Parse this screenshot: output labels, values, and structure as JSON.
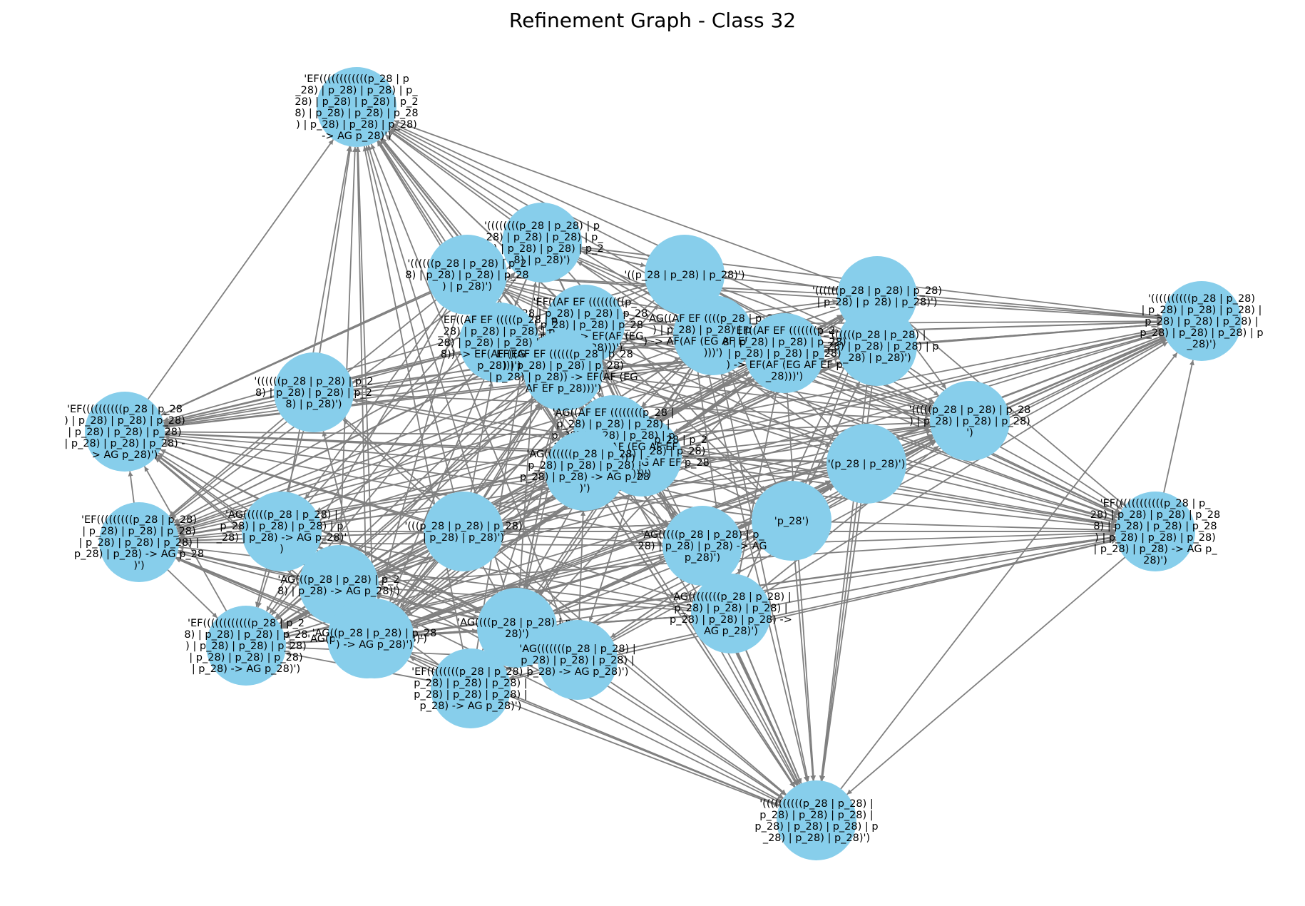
{
  "title": "Refinement Graph - Class 32",
  "colors": {
    "node_fill": "#87ceeb",
    "edge": "#808080",
    "label": "#000000",
    "background": "#ffffff"
  },
  "nodes": [
    {
      "id": "n_top",
      "lines": [
        "'EF((((((((((((p_28 | p",
        "_28) | p_28) | p_28) | p_",
        "28) | p_28) | p_28) | p_2",
        "8) | p_28) | p_28) | p_28",
        ") | p_28) | p_28) | p_28)",
        "-> AG p_28)')"
      ]
    },
    {
      "id": "n_tr",
      "lines": [
        "'((((((((((p_28 | p_28)",
        "| p_28) | p_28) | p_28) |",
        "p_28) | p_28) | p_28) |",
        "p_28) | p_28) | p_28) | p",
        "_28)')"
      ]
    },
    {
      "id": "n_bottom",
      "lines": [
        "'((((((((((p_28 | p_28) |",
        "p_28) | p_28) | p_28) |",
        "p_28) | p_28) | p_28) | p",
        "_28) | p_28) | p_28)')"
      ]
    },
    {
      "id": "n_right",
      "lines": [
        "'EF((((((((((((p_28 | p_",
        "28) | p_28) | p_28) | p_28",
        "8) | p_28) | p_28) | p_28",
        ") | p_28) | p_28) | p_28)",
        "| p_28) | p_28) -> AG p_",
        "28)')"
      ]
    },
    {
      "id": "n_left_top",
      "lines": [
        "'EF((((((((((p_28 | p_28",
        ") | p_28) | p_28) | p_28)",
        "| p_28) | p_28) | p_28)",
        "| p_28) | p_28) | p_28) -",
        "> AG p_28)')"
      ]
    },
    {
      "id": "n_left_mid",
      "lines": [
        "'EF(((((((((p_28 | p_28)",
        "| p_28) | p_28) | p_28)",
        "| p_28) | p_28) | p_28) |",
        "p_28) | p_28) -> AG p_28",
        ")')"
      ]
    },
    {
      "id": "n_left_bottom",
      "lines": [
        "'EF((((((((((((p_28 | p_2",
        "8) | p_28) | p_28) | p_28",
        ") | p_28) | p_28) | p_28)",
        "| p_28) | p_28) | p_28)",
        "| p_28) -> AG p_28)')"
      ]
    },
    {
      "id": "n_mid_right",
      "lines": [
        "'(((((p_28 | p_28) | p_28",
        ") | p_28) | p_28) | p_28)",
        "')"
      ]
    },
    {
      "id": "n_ul1",
      "lines": [
        "'((((((((p_28 | p_28) | p",
        "_28) | p_28) | p_28) | p_",
        "28) | p_28) | p_28) | p_2",
        "8) | p_28)')"
      ]
    },
    {
      "id": "n_ul2",
      "lines": [
        "'((((((p_28 | p_28) | p_2",
        "8) | p_28) | p_28) | p_28",
        ") | p_28)')"
      ]
    },
    {
      "id": "n_ul3",
      "lines": [
        "'((((((p_28 | p_28) | p_2",
        "8) | p_28) | p_28) | p_2",
        "8) | p_28)')"
      ]
    },
    {
      "id": "n_pp",
      "lines": [
        "'((p_28 | p_28) | p_28)')"
      ]
    },
    {
      "id": "n_p28pair",
      "lines": [
        "'(p_28 | p_28)')"
      ]
    },
    {
      "id": "n_p28",
      "lines": [
        "'p_28')"
      ]
    },
    {
      "id": "n_ur1",
      "lines": [
        "'((((((p_28 | p_28) | p_28)",
        "| p_28) | p_28) | p_28)')"
      ]
    },
    {
      "id": "n_ur2",
      "lines": [
        "'((((((p_28 | p_28) |",
        "p_28) | p_28) | p_28) | p",
        "_28) | p_28)')"
      ]
    },
    {
      "id": "n_ppp",
      "lines": [
        "'(((p_28 | p_28) | p_28)",
        "| p_28) | p_28)')"
      ]
    },
    {
      "id": "n_ag1",
      "lines": [
        "'AG((((((p_28 | p_28) |",
        "p_28) | p_28) | p_28) | p",
        "_28) | p_28) -> AG p_28)'",
        ")"
      ]
    },
    {
      "id": "n_ag2",
      "lines": [
        "'AG(((p_28 | p_28) | p_2",
        "8) | p_28) -> AG p_28)')"
      ]
    },
    {
      "id": "n_ag3",
      "lines": [
        "'AG(p_28 -> AG p_28)')"
      ]
    },
    {
      "id": "n_ag4",
      "lines": [
        "'AG((p_28 | p_28) | p_28",
        ") -> AG p_28)')"
      ]
    },
    {
      "id": "n_ag5",
      "lines": [
        "'AG((((p_28 | p_28) | p_",
        "28)')"
      ]
    },
    {
      "id": "n_ag6",
      "lines": [
        "'AG(((((((p_28 | p_28) |",
        "p_28) | p_28) | p_28) |",
        "p_28) -> AG p_28)')"
      ]
    },
    {
      "id": "n_ag7",
      "lines": [
        "'AG((((((((p_28 | p_28) |",
        "p_28) | p_28) | p_28) |",
        "p_28) | p_28) | p_28) ->",
        "AG p_28)')"
      ]
    },
    {
      "id": "n_ef_b",
      "lines": [
        "'EF((((((((p_28 | p_28) |",
        "p_28) | p_28) | p_28) |",
        "p_28) | p_28) | p_28) |",
        "p_28) -> AG p_28)')"
      ]
    },
    {
      "id": "n_ag_c1",
      "lines": [
        "'AG(((((p_28 | p_28) | p_",
        "28) | p_28) | p_28) -> AG",
        "p_28)')"
      ]
    },
    {
      "id": "n_ag_c2",
      "lines": [
        "'AG((AF EF ((((p_28 | p_28",
        ") | p_28) | p_28) | p_28)",
        ") -> AF(AF (EG AF EF p_28)",
        ")))')"
      ]
    },
    {
      "id": "n_ef_c1",
      "lines": [
        "'EF((AF EF (((((((((p_",
        "28 | p_28) | p_28) | p_28",
        ") | p_28) | p_28) | p_28",
        ") | p_28)) -> EF(AF (EG",
        "AF EF p_28)))')"
      ]
    },
    {
      "id": "n_ef_c2",
      "lines": [
        "'EF((AF EF (((((p_28 | p",
        "_28) | p_28) | p_28) | p_",
        "28) | p_28) | p_28) | p_2",
        "8)) -> EF(AF (EG AF EF",
        "p_28)))')"
      ]
    },
    {
      "id": "n_ef_c3",
      "lines": [
        "'EF((AF EF (((((((p_2",
        "8 | p_28) | p_28) | p_28)",
        "| p_28) | p_28) | p_28)",
        ") -> EF(AF (EG AF EF p",
        "_28)))')"
      ]
    },
    {
      "id": "n_ef_c4",
      "lines": [
        "'EF((AF EF ((((((p_28 | p_28",
        ") | p_28) | p_28) | p_28)",
        "| p_28) | p_28)) -> EF(AF (EG",
        "AF EF p_28)))')"
      ]
    },
    {
      "id": "n_ag_c3",
      "lines": [
        "'AG((AF EF (((((p_28 | p_2",
        "8) | p_28) | p_28) | p_28)",
        ") -> AF(AF (EG AF EF p_28",
        ")))')"
      ]
    },
    {
      "id": "n_ag_c4",
      "lines": [
        "'AG((AF EF ((((((((p_28 |",
        "p_28) | p_28) | p_28) |",
        "p_28) | p_28) | p_28) | p",
        "_28)) -> AF(AF (EG AF EF",
        "p_28)))')"
      ]
    },
    {
      "id": "n_ag_c5",
      "lines": [
        "'AG(((((((p_28 | p_28) |",
        "p_28) | p_28) | p_28) |",
        "p_28) | p_28) -> AG p_28",
        ")')"
      ]
    }
  ]
}
